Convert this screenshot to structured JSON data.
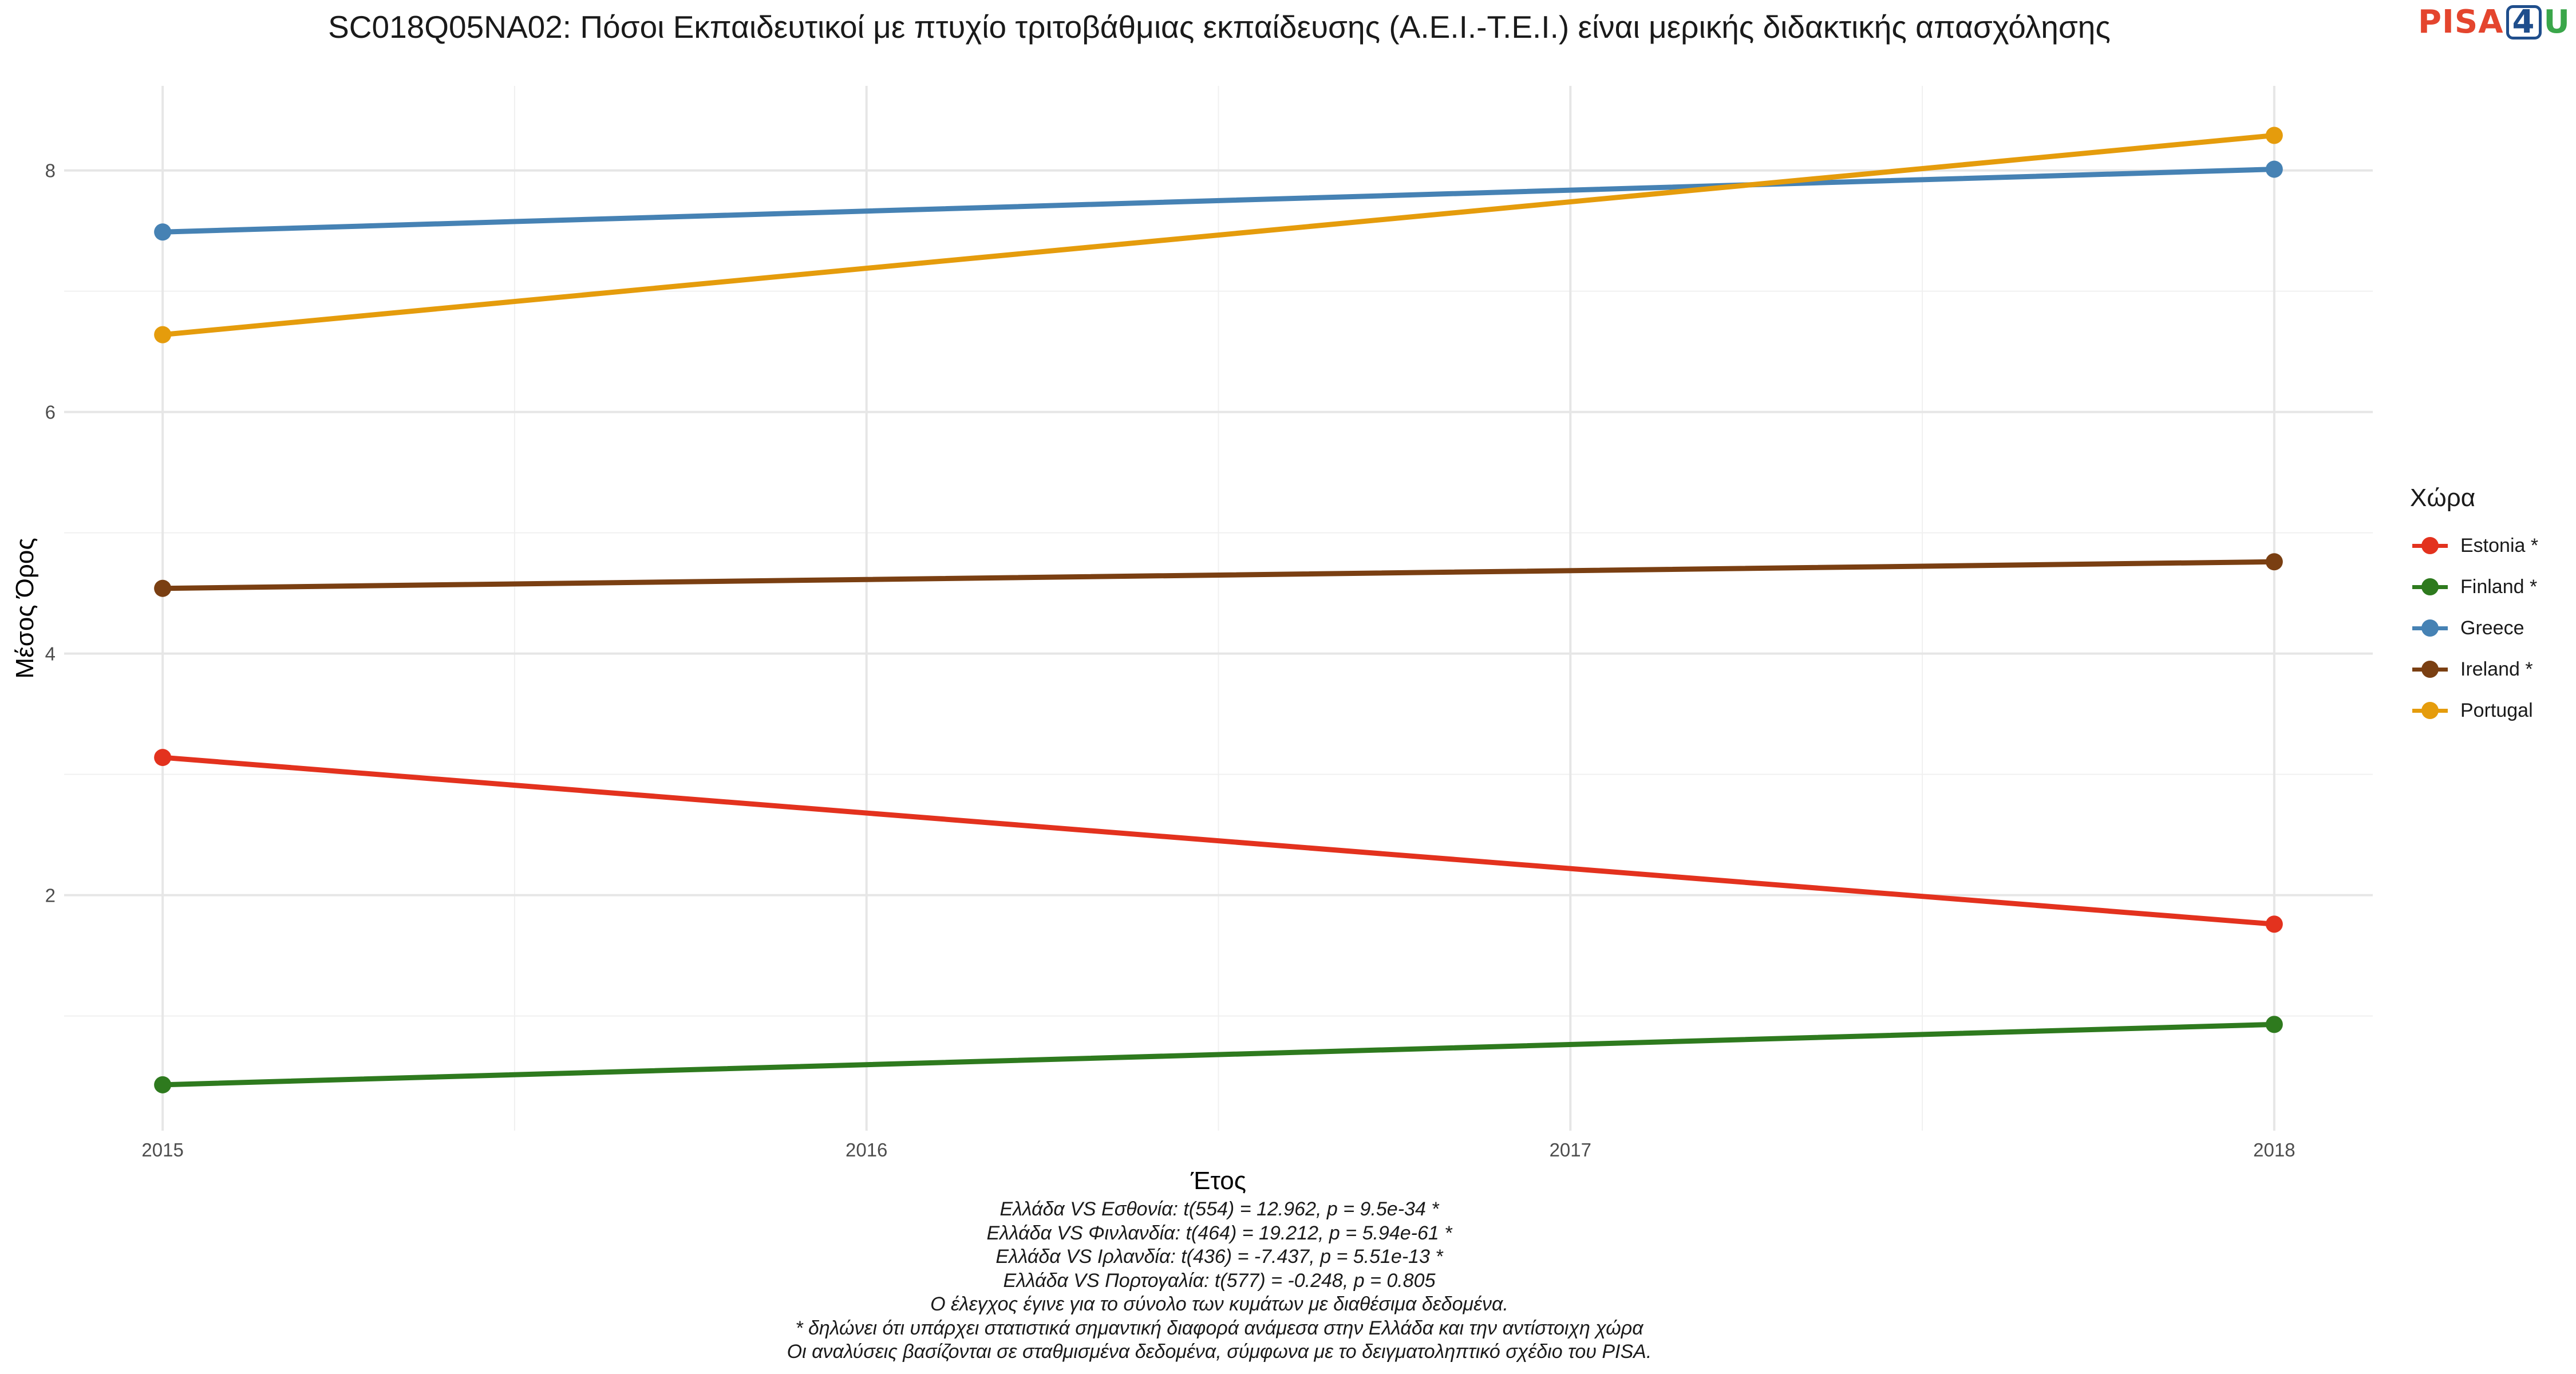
{
  "title": "SC018Q05NA02: Πόσοι Εκπαιδευτικοί με πτυχίο τριτοβάθμιας εκπαίδευσης (Α.Ε.Ι.-Τ.Ε.Ι.) είναι μερικής διδακτικής απασχόλησης",
  "logo": {
    "part1": "PISA",
    "part2": "4",
    "part3": "U"
  },
  "chart_data": {
    "type": "line",
    "title": "SC018Q05NA02: Πόσοι Εκπαιδευτικοί με πτυχίο τριτοβάθμιας εκπαίδευσης (Α.Ε.Ι.-Τ.Ε.Ι.) είναι μερικής διδακτικής απασχόλησης",
    "xlabel": "Έτος",
    "ylabel": "Μέσος Όρος",
    "x_ticks": [
      2015,
      2016,
      2017,
      2018
    ],
    "y_ticks": [
      2,
      4,
      6,
      8
    ],
    "xlim": [
      2014.86,
      2018.14
    ],
    "ylim": [
      0.05,
      8.7
    ],
    "grid": true,
    "legend_title": "Χώρα",
    "legend_position": "right",
    "series": [
      {
        "name": "Estonia *",
        "color": "#e3321e",
        "x": [
          2015,
          2018
        ],
        "y": [
          3.14,
          1.76
        ]
      },
      {
        "name": "Finland *",
        "color": "#2e7a1e",
        "x": [
          2015,
          2018
        ],
        "y": [
          0.43,
          0.93
        ]
      },
      {
        "name": "Greece",
        "color": "#4682b4",
        "x": [
          2015,
          2018
        ],
        "y": [
          7.49,
          8.01
        ]
      },
      {
        "name": "Ireland *",
        "color": "#7a3f12",
        "x": [
          2015,
          2018
        ],
        "y": [
          4.54,
          4.76
        ]
      },
      {
        "name": "Portugal",
        "color": "#e59c0c",
        "x": [
          2015,
          2018
        ],
        "y": [
          6.64,
          8.29
        ]
      }
    ]
  },
  "footer": [
    "Ελλάδα VS Εσθονία: t(554) = 12.962, p = 9.5e-34 *",
    "Ελλάδα VS Φινλανδία: t(464) = 19.212, p = 5.94e-61 *",
    "Ελλάδα VS Ιρλανδία: t(436) = -7.437, p = 5.51e-13 *",
    "Ελλάδα VS Πορτογαλία: t(577) = -0.248, p = 0.805",
    "Ο έλεγχος έγινε για το σύνολο των κυμάτων με διαθέσιμα δεδομένα.",
    "* δηλώνει ότι υπάρχει στατιστικά σημαντική διαφορά ανάμεσα στην Ελλάδα και την αντίστοιχη χώρα",
    "Οι αναλύσεις βασίζονται σε σταθμισμένα δεδομένα, σύμφωνα με το δειγματοληπτικό σχέδιο του PISA."
  ]
}
